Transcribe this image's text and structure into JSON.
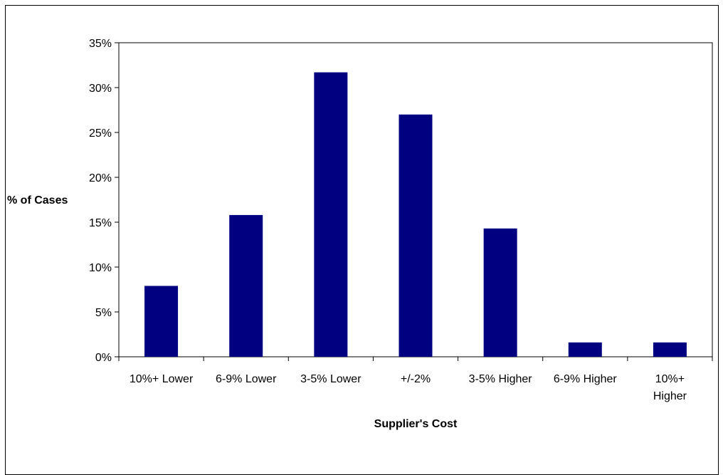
{
  "chart_data": {
    "type": "bar",
    "title": "",
    "xlabel": "Supplier's Cost",
    "ylabel": "% of Cases",
    "categories": [
      [
        "10%+ Lower"
      ],
      [
        "6-9% Lower"
      ],
      [
        "3-5% Lower"
      ],
      [
        "+/-2%"
      ],
      [
        "3-5% Higher"
      ],
      [
        "6-9% Higher"
      ],
      [
        "10%+",
        "Higher"
      ]
    ],
    "values": [
      0.079,
      0.158,
      0.317,
      0.27,
      0.143,
      0.016,
      0.016
    ],
    "ylim": [
      0,
      0.35
    ],
    "yticks": [
      "0%",
      "5%",
      "10%",
      "15%",
      "20%",
      "25%",
      "30%",
      "35%"
    ],
    "ytick_values": [
      0,
      0.05,
      0.1,
      0.15,
      0.2,
      0.25,
      0.3,
      0.35
    ],
    "grid": false,
    "legend": "none",
    "colors": {
      "bar": "#000080",
      "axis": "#000000",
      "background": "#ffffff"
    }
  }
}
